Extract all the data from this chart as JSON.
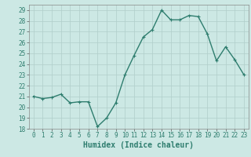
{
  "x": [
    0,
    1,
    2,
    3,
    4,
    5,
    6,
    7,
    8,
    9,
    10,
    11,
    12,
    13,
    14,
    15,
    16,
    17,
    18,
    19,
    20,
    21,
    22,
    23
  ],
  "y": [
    21.0,
    20.8,
    20.9,
    21.2,
    20.4,
    20.5,
    20.5,
    18.2,
    19.0,
    20.4,
    23.0,
    24.8,
    26.5,
    27.2,
    29.0,
    28.1,
    28.1,
    28.5,
    28.4,
    26.8,
    24.3,
    25.6,
    24.4,
    23.0
  ],
  "line_color": "#2e7d6e",
  "marker": "+",
  "marker_size": 3,
  "linewidth": 1.0,
  "xlabel": "Humidex (Indice chaleur)",
  "xlim": [
    -0.5,
    23.5
  ],
  "ylim": [
    18,
    29.5
  ],
  "yticks": [
    18,
    19,
    20,
    21,
    22,
    23,
    24,
    25,
    26,
    27,
    28,
    29
  ],
  "xticks": [
    0,
    1,
    2,
    3,
    4,
    5,
    6,
    7,
    8,
    9,
    10,
    11,
    12,
    13,
    14,
    15,
    16,
    17,
    18,
    19,
    20,
    21,
    22,
    23
  ],
  "bg_color": "#cce8e4",
  "grid_color": "#b0ceca",
  "tick_labelsize": 5.5,
  "xlabel_fontsize": 7.0
}
